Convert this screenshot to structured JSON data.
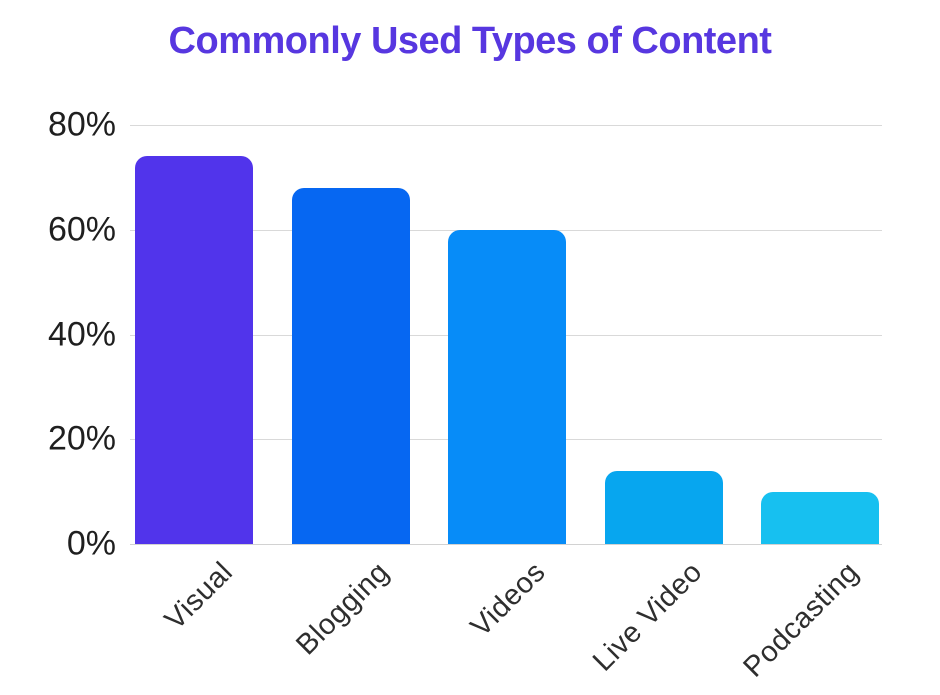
{
  "chart_data": {
    "type": "bar",
    "title": "Commonly Used Types of Content",
    "categories": [
      "Visual",
      "Blogging",
      "Videos",
      "Live Video",
      "Podcasting"
    ],
    "values": [
      74,
      68,
      60,
      14,
      10
    ],
    "unit": "%",
    "xlabel": "",
    "ylabel": "",
    "ylim": [
      0,
      80
    ],
    "ytick_values": [
      0,
      20,
      40,
      60,
      80
    ],
    "ytick_labels": [
      "0%",
      "20%",
      "40%",
      "60%",
      "80%"
    ],
    "grid": true,
    "legend": false,
    "bar_colors": [
      "#5134eb",
      "#0667f2",
      "#078cf8",
      "#07a6ef",
      "#17c0f0"
    ],
    "textured_bars": [
      "Live Video",
      "Podcasting"
    ],
    "colors": {
      "title": "#5737e0",
      "gridline": "#d9d9d9",
      "axis_label": "#1f1f1f",
      "category_label": "#2e2e2e",
      "background": "#ffffff"
    }
  }
}
